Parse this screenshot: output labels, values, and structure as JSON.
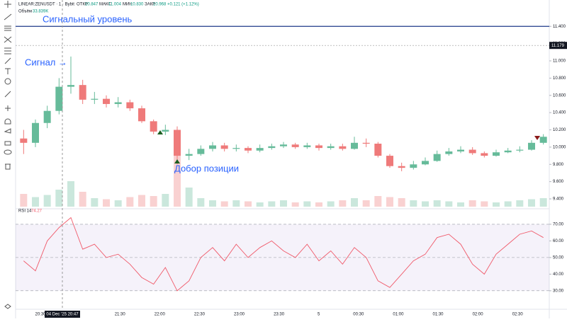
{
  "header": {
    "symbol": "LINEAR:ZENUSDT · 1 · Bybit",
    "open_label": "ОТКР",
    "open": "10.847",
    "high_label": "МАКС",
    "high": "11.004",
    "low_label": "МИН",
    "low": "10.830",
    "close_label": "ЗАКР",
    "close": "10.968",
    "change": "+0.121 (+1.12%)",
    "volume_label": "Объём",
    "volume": "33.839K",
    "rsi_label": "RSI 14",
    "rsi": "74.27",
    "cursor_time": "04 Dec '25  20:47"
  },
  "chart_data": {
    "type": "candlestick",
    "annotations": {
      "signal_level_text": "Сигнальный уровень",
      "signal_text": "Сигнал →",
      "add_text": "Добор позиции"
    },
    "signal_level": 11.4,
    "last_price": 11.179,
    "open": [
      10.1,
      10.05,
      10.28,
      10.42,
      10.7,
      10.72,
      10.55,
      10.56,
      10.5,
      10.52,
      10.45,
      10.3,
      10.18,
      10.2,
      9.9,
      9.92,
      9.98,
      10.02,
      9.98,
      9.99,
      9.96,
      9.99,
      10.01,
      10.03,
      10.0,
      10.02,
      9.99,
      10.01,
      9.98,
      10.05,
      10.04,
      9.9,
      9.78,
      9.76,
      9.8,
      9.84,
      9.92,
      9.95,
      9.97,
      9.93,
      9.9,
      9.94,
      9.96,
      9.97,
      10.05
    ],
    "high": [
      10.2,
      10.32,
      10.48,
      10.8,
      11.05,
      10.78,
      10.64,
      10.6,
      10.58,
      10.55,
      10.48,
      10.32,
      10.26,
      10.24,
      9.98,
      10.02,
      10.06,
      10.05,
      10.03,
      10.01,
      10.03,
      10.04,
      10.06,
      10.05,
      10.05,
      10.04,
      10.04,
      10.04,
      10.12,
      10.1,
      10.06,
      9.92,
      9.82,
      9.84,
      9.88,
      9.96,
      9.99,
      10.01,
      10.0,
      9.95,
      9.97,
      9.99,
      10.01,
      10.08,
      10.15
    ],
    "low": [
      9.92,
      10.0,
      10.22,
      10.38,
      10.62,
      10.5,
      10.5,
      10.46,
      10.46,
      10.42,
      10.28,
      10.15,
      10.14,
      9.8,
      9.85,
      9.9,
      9.95,
      9.95,
      9.95,
      9.93,
      9.94,
      9.97,
      9.99,
      9.98,
      9.98,
      9.96,
      9.97,
      9.96,
      9.97,
      10.0,
      9.88,
      9.76,
      9.72,
      9.74,
      9.79,
      9.83,
      9.9,
      9.93,
      9.91,
      9.88,
      9.89,
      9.93,
      9.94,
      9.96,
      10.03
    ],
    "close": [
      10.05,
      10.28,
      10.42,
      10.7,
      10.72,
      10.55,
      10.56,
      10.5,
      10.52,
      10.45,
      10.3,
      10.18,
      10.2,
      9.9,
      9.92,
      9.98,
      10.02,
      9.98,
      9.99,
      9.96,
      9.99,
      10.01,
      10.03,
      10.0,
      10.02,
      9.99,
      10.01,
      9.98,
      10.05,
      10.04,
      9.9,
      9.78,
      9.76,
      9.8,
      9.84,
      9.92,
      9.95,
      9.97,
      9.93,
      9.9,
      9.94,
      9.96,
      9.97,
      10.05,
      10.12
    ],
    "volume": [
      60,
      45,
      55,
      80,
      120,
      70,
      40,
      35,
      30,
      45,
      55,
      50,
      60,
      240,
      90,
      40,
      30,
      25,
      30,
      25,
      20,
      25,
      30,
      20,
      25,
      20,
      25,
      30,
      40,
      30,
      50,
      45,
      40,
      30,
      25,
      30,
      25,
      20,
      30,
      25,
      20,
      25,
      30,
      35,
      40
    ],
    "volume_ylim": [
      0,
      300
    ],
    "rsi": [
      48,
      42,
      60,
      68,
      74,
      55,
      58,
      50,
      52,
      46,
      38,
      34,
      44,
      30,
      36,
      50,
      56,
      48,
      58,
      50,
      56,
      60,
      54,
      50,
      58,
      48,
      54,
      46,
      56,
      50,
      36,
      32,
      40,
      48,
      52,
      62,
      64,
      58,
      46,
      40,
      52,
      58,
      64,
      66,
      62
    ],
    "ylim": [
      9.31,
      11.64
    ],
    "yticks": [
      {
        "value": 9.4,
        "label": "9.400"
      },
      {
        "value": 9.6,
        "label": "9.600"
      },
      {
        "value": 9.8,
        "label": "9.800"
      },
      {
        "value": 10.0,
        "label": "10.000"
      },
      {
        "value": 10.2,
        "label": "10.200"
      },
      {
        "value": 10.4,
        "label": "10.400"
      },
      {
        "value": 10.6,
        "label": "10.600"
      },
      {
        "value": 10.8,
        "label": "10.800"
      },
      {
        "value": 11.0,
        "label": "11.000"
      },
      {
        "value": 11.2,
        "label": "11.200"
      },
      {
        "value": 11.4,
        "label": "11.400"
      }
    ],
    "rsi_ylim": [
      21,
      77.2
    ],
    "rsi_yticks": [
      {
        "value": 30,
        "label": "30.00"
      },
      {
        "value": 40,
        "label": "40.00"
      },
      {
        "value": 50,
        "label": "50.00"
      },
      {
        "value": 60,
        "label": "60.00"
      },
      {
        "value": 70,
        "label": "70.00"
      }
    ],
    "xtick_labels": [
      "20:30",
      null,
      "21:30",
      "22:00",
      "22:30",
      "23:00",
      "23:30",
      "5",
      "00:30",
      "01:00",
      "01:30",
      "02:00",
      "02:30"
    ],
    "up_color": "#66bb9a",
    "down_color": "#ef7a7a",
    "rsi_color": "#f05a6a"
  }
}
